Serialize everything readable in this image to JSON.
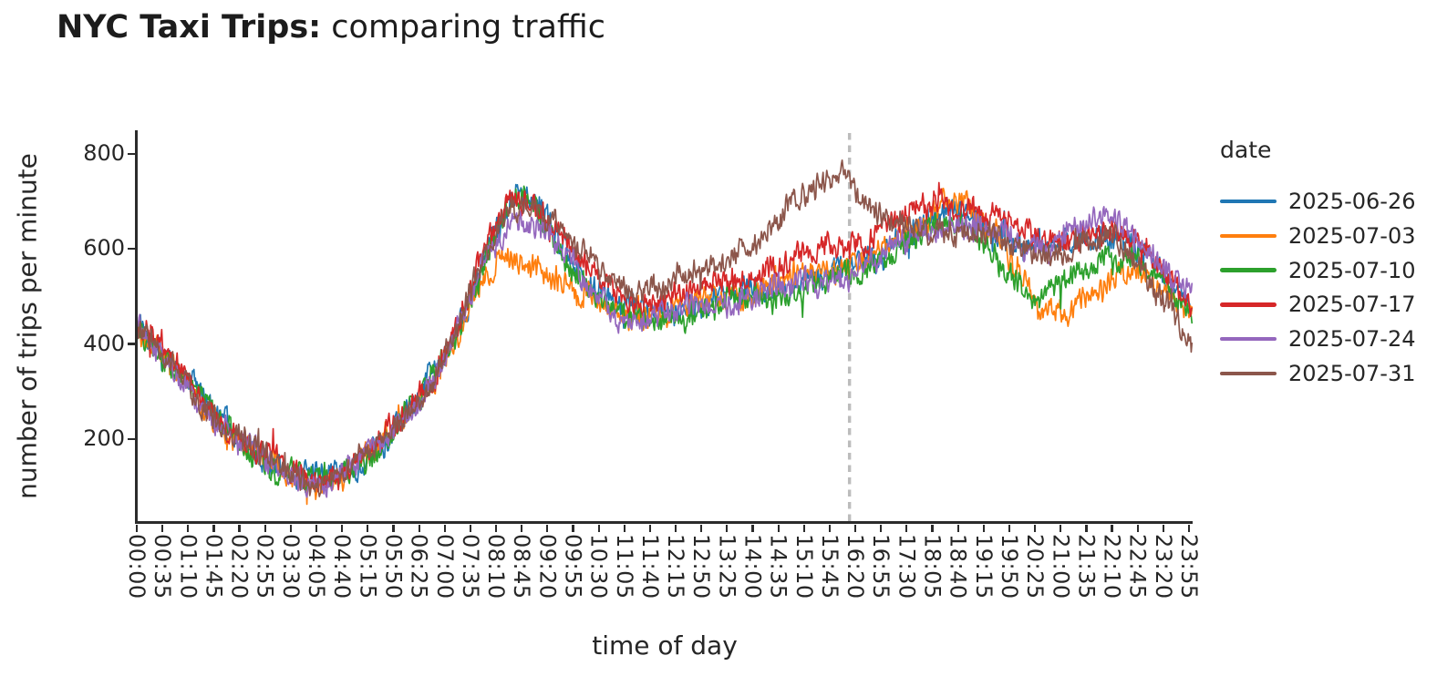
{
  "title": {
    "bold": "NYC Taxi Trips:",
    "regular": " comparing traffic"
  },
  "colors": {
    "background": "#ffffff",
    "axis": "#2b2b2b",
    "text": "#262626",
    "vline": "#bcbcbc"
  },
  "chart_data": {
    "type": "line",
    "title": "NYC Taxi Trips: comparing traffic",
    "xlabel": "time of day",
    "ylabel": "number of trips per minute",
    "legend_title": "date",
    "legend_position": "right",
    "grid": false,
    "x_axis": {
      "unit": "minutes of day",
      "range_minutes": [
        0,
        1439
      ],
      "tick_interval_minutes": 35,
      "tick_labels": [
        "00:00",
        "00:35",
        "01:10",
        "01:45",
        "02:20",
        "02:55",
        "03:30",
        "04:05",
        "04:40",
        "05:15",
        "05:50",
        "06:25",
        "07:00",
        "07:35",
        "08:10",
        "08:45",
        "09:20",
        "09:55",
        "10:30",
        "11:05",
        "11:40",
        "12:15",
        "12:50",
        "13:25",
        "14:00",
        "14:35",
        "15:10",
        "15:45",
        "16:20",
        "16:55",
        "17:30",
        "18:05",
        "18:40",
        "19:15",
        "19:50",
        "20:25",
        "21:00",
        "21:35",
        "22:10",
        "22:45",
        "23:20",
        "23:55"
      ]
    },
    "y_axis": {
      "ticks": [
        200,
        400,
        600,
        800
      ],
      "lim": [
        25,
        850
      ]
    },
    "vline": {
      "time": "16:12",
      "minute": 972,
      "color": "#bcbcbc",
      "style": "dotted"
    },
    "noise_amplitude": 24,
    "anchor_step_minutes": 30,
    "series": [
      {
        "name": "2025-06-26",
        "color": "#1f77b4",
        "values": [
          455,
          390,
          335,
          285,
          235,
          190,
          155,
          125,
          115,
          125,
          150,
          185,
          235,
          300,
          375,
          480,
          610,
          695,
          700,
          640,
          565,
          510,
          475,
          465,
          470,
          480,
          490,
          500,
          510,
          520,
          530,
          540,
          555,
          570,
          600,
          630,
          655,
          675,
          665,
          645,
          615,
          595,
          605,
          620,
          635,
          620,
          580,
          525,
          470
        ]
      },
      {
        "name": "2025-07-03",
        "color": "#ff7f0e",
        "values": [
          430,
          375,
          320,
          270,
          225,
          185,
          150,
          120,
          112,
          122,
          148,
          182,
          230,
          295,
          370,
          460,
          545,
          590,
          570,
          545,
          505,
          480,
          465,
          460,
          470,
          480,
          490,
          500,
          510,
          520,
          535,
          550,
          565,
          580,
          600,
          625,
          655,
          730,
          690,
          630,
          545,
          475,
          480,
          495,
          515,
          545,
          545,
          510,
          475
        ]
      },
      {
        "name": "2025-07-10",
        "color": "#2ca02c",
        "values": [
          440,
          385,
          330,
          278,
          228,
          185,
          148,
          118,
          108,
          118,
          145,
          180,
          228,
          292,
          368,
          475,
          600,
          700,
          690,
          625,
          550,
          495,
          455,
          445,
          455,
          465,
          475,
          485,
          495,
          505,
          515,
          525,
          540,
          555,
          585,
          615,
          640,
          650,
          635,
          600,
          530,
          480,
          520,
          560,
          590,
          580,
          550,
          505,
          455
        ]
      },
      {
        "name": "2025-07-17",
        "color": "#d62728",
        "values": [
          450,
          395,
          338,
          286,
          236,
          192,
          155,
          125,
          115,
          127,
          152,
          188,
          238,
          302,
          380,
          490,
          615,
          705,
          705,
          650,
          580,
          530,
          500,
          490,
          500,
          510,
          520,
          535,
          550,
          565,
          580,
          595,
          610,
          620,
          645,
          665,
          690,
          700,
          690,
          665,
          635,
          615,
          620,
          630,
          640,
          625,
          590,
          540,
          485
        ]
      },
      {
        "name": "2025-07-24",
        "color": "#9467bd",
        "values": [
          435,
          380,
          325,
          272,
          225,
          182,
          146,
          117,
          108,
          119,
          146,
          182,
          230,
          294,
          370,
          470,
          590,
          665,
          660,
          610,
          545,
          495,
          462,
          452,
          462,
          472,
          482,
          492,
          502,
          512,
          522,
          532,
          548,
          562,
          590,
          618,
          640,
          655,
          648,
          630,
          608,
          600,
          628,
          652,
          658,
          640,
          600,
          550,
          500
        ]
      },
      {
        "name": "2025-07-31",
        "color": "#8c564b",
        "values": [
          440,
          385,
          330,
          278,
          230,
          188,
          152,
          122,
          112,
          123,
          150,
          186,
          234,
          298,
          374,
          478,
          600,
          690,
          700,
          660,
          600,
          555,
          525,
          515,
          525,
          540,
          560,
          590,
          620,
          655,
          695,
          730,
          775,
          710,
          655,
          635,
          640,
          645,
          635,
          620,
          595,
          585,
          600,
          615,
          620,
          590,
          545,
          480,
          395
        ]
      }
    ]
  }
}
